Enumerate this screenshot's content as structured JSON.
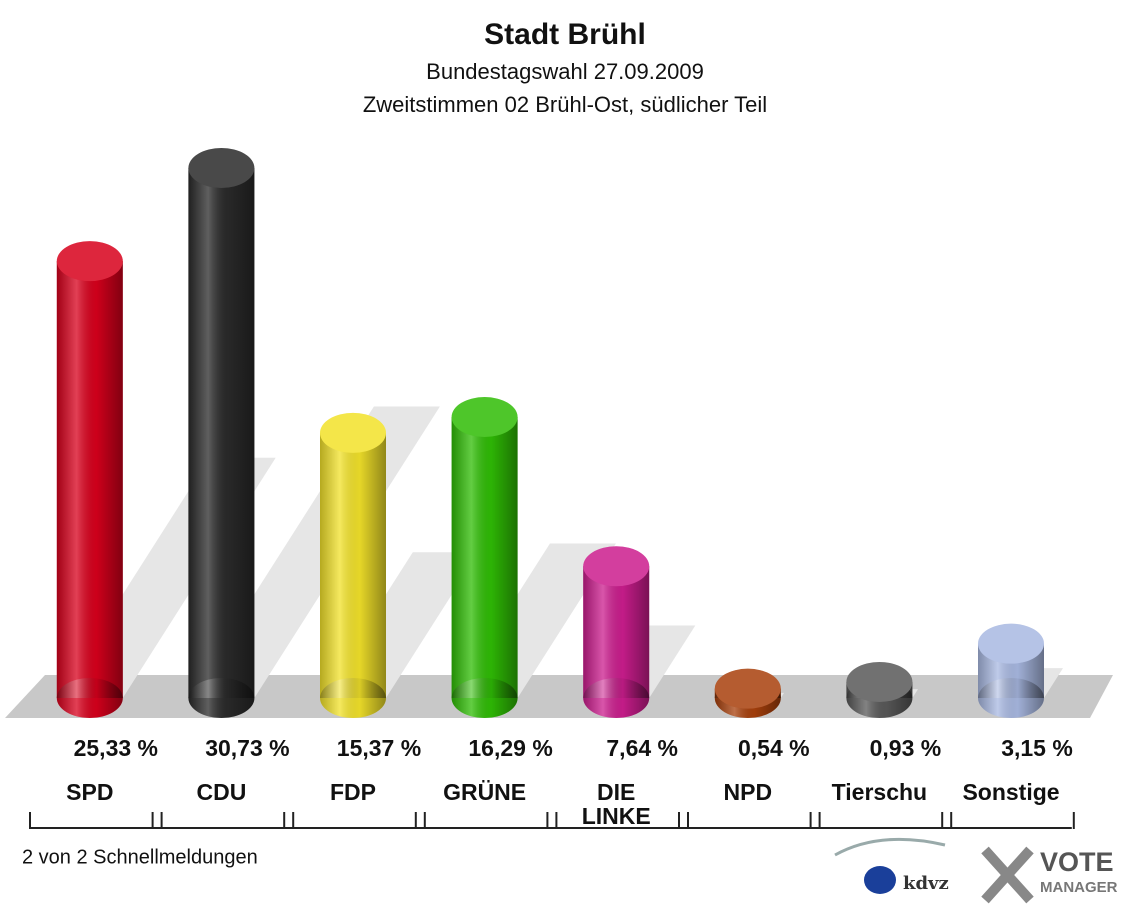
{
  "chart_data": {
    "type": "bar",
    "title": "Stadt Brühl",
    "subtitle": [
      "Bundestagswahl 27.09.2009",
      "Zweitstimmen 02 Brühl-Ost, südlicher Teil"
    ],
    "categories": [
      "SPD",
      "CDU",
      "FDP",
      "GRÜNE",
      "DIE\nLINKE",
      "NPD",
      "Tierschu",
      "Sonstige"
    ],
    "values": [
      25.33,
      30.73,
      15.37,
      16.29,
      7.64,
      0.54,
      0.93,
      3.15
    ],
    "value_labels": [
      "25,33 %",
      "30,73 %",
      "15,37 %",
      "16,29 %",
      "7,64 %",
      "0,54 %",
      "0,93 %",
      "3,15 %"
    ],
    "colors": [
      "#d8001c",
      "#2a2a2a",
      "#f2e22a",
      "#2fbd05",
      "#cc1d8e",
      "#a8400c",
      "#595959",
      "#a9b9e2"
    ],
    "footer": "2 von 2 Schnellmeldungen",
    "logos": [
      "kdvz",
      "VOTE",
      "MANAGER"
    ]
  }
}
